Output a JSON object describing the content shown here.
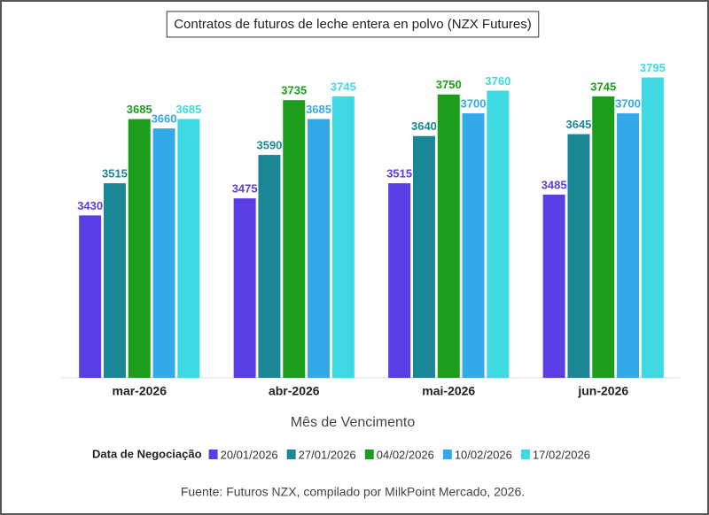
{
  "chart_data": {
    "type": "bar",
    "title": "Contratos de futuros de leche entera en polvo (NZX Futures)",
    "x_label": "Mês de Vencimento",
    "legend_title": "Data de Negociação",
    "source": "Fuente: Futuros NZX, compilado por MilkPoint Mercado, 2026.",
    "categories": [
      "mar-2026",
      "abr-2026",
      "mai-2026",
      "jun-2026"
    ],
    "series": [
      {
        "name": "20/01/2026",
        "color": "#5b3de6",
        "values": [
          3430,
          3475,
          3515,
          3485
        ]
      },
      {
        "name": "27/01/2026",
        "color": "#1b8796",
        "values": [
          3515,
          3590,
          3640,
          3645
        ]
      },
      {
        "name": "04/02/2026",
        "color": "#1c9e1c",
        "values": [
          3685,
          3735,
          3750,
          3745
        ]
      },
      {
        "name": "10/02/2026",
        "color": "#33a9ea",
        "values": [
          3660,
          3685,
          3700,
          3700
        ]
      },
      {
        "name": "17/02/2026",
        "color": "#3ed9e3",
        "values": [
          3685,
          3745,
          3760,
          3795
        ]
      }
    ],
    "ylim": [
      3000,
      3800
    ],
    "legend": "bottom"
  }
}
